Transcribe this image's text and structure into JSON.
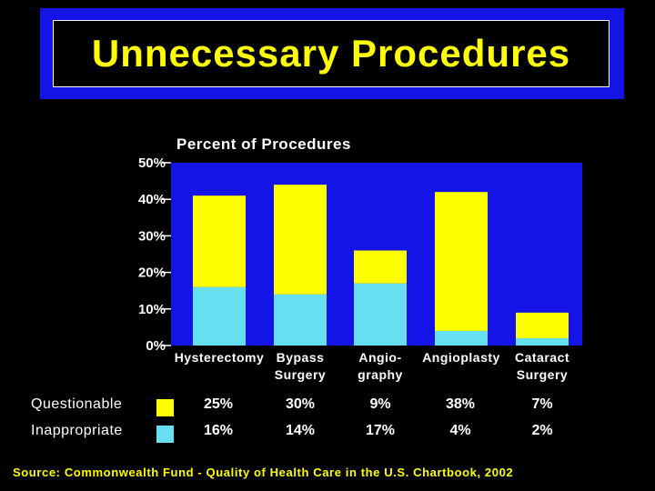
{
  "title": "Unnecessary Procedures",
  "source": "Source: Commonwealth Fund - Quality of Health Care in the U.S. Chartbook, 2002",
  "colors": {
    "questionable": "#ffff00",
    "inappropriate": "#66e0f0",
    "plot_bg": "#1414e6",
    "title_frame": "#1414e6"
  },
  "legend": {
    "questionable_label": "Questionable",
    "inappropriate_label": "Inappropriate"
  },
  "chart_data": {
    "type": "bar",
    "stacked": true,
    "ylabel": "Percent of Procedures",
    "ylim": [
      0,
      50
    ],
    "yticks": [
      "0%",
      "10%",
      "20%",
      "30%",
      "40%",
      "50%"
    ],
    "categories": [
      [
        "Hysterectomy"
      ],
      [
        "Bypass",
        "Surgery"
      ],
      [
        "Angio-",
        "graphy"
      ],
      [
        "Angioplasty"
      ],
      [
        "Cataract",
        "Surgery"
      ]
    ],
    "series": [
      {
        "name": "Inappropriate",
        "values": [
          16,
          14,
          17,
          4,
          2
        ],
        "labels": [
          "16%",
          "14%",
          "17%",
          "4%",
          "2%"
        ]
      },
      {
        "name": "Questionable",
        "values": [
          25,
          30,
          9,
          38,
          7
        ],
        "labels": [
          "25%",
          "30%",
          "9%",
          "38%",
          "7%"
        ]
      }
    ],
    "grid": false
  }
}
